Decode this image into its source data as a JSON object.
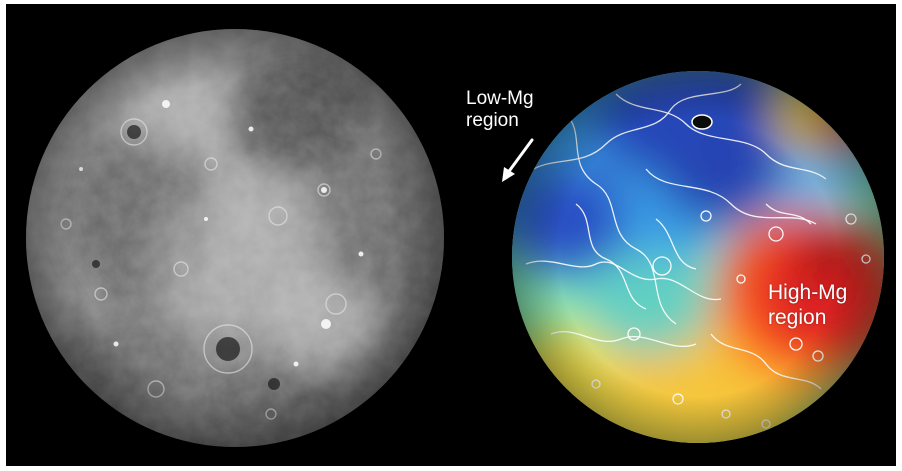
{
  "figure": {
    "left_panel": {
      "subject": "grayscale planetary globe",
      "palette": {
        "background": "#000000",
        "surface_light": "#b8b8b8",
        "surface_dark": "#3e3e3e"
      }
    },
    "right_panel": {
      "subject": "false-color globe",
      "palette": {
        "low": "#2746b8",
        "mid_low": "#3aa0e8",
        "mid": "#7fe7b2",
        "mid_high": "#f1e04a",
        "high": "#e02220",
        "contours": "#ffffff"
      },
      "annotations": {
        "low_label": "Low-Mg\nregion",
        "high_label": "High-Mg\nregion"
      }
    }
  }
}
